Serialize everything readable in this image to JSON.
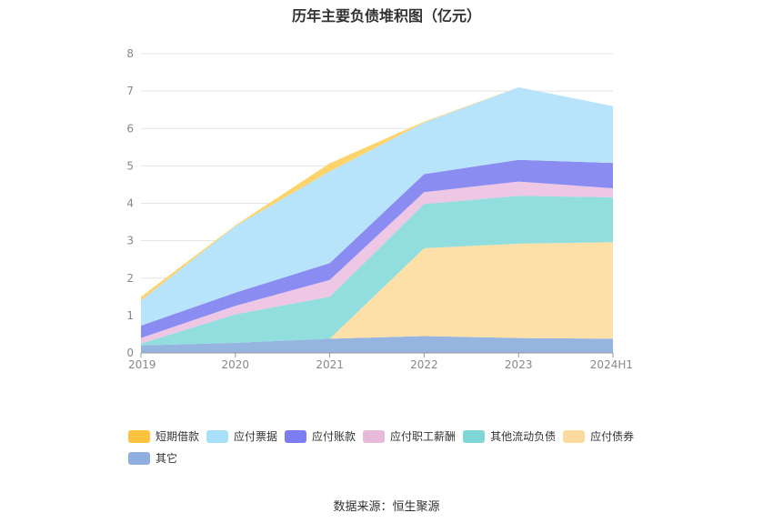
{
  "chart_data": {
    "type": "area",
    "stacked": true,
    "title": "历年主要负债堆积图（亿元）",
    "categories": [
      "2019",
      "2020",
      "2021",
      "2022",
      "2023",
      "2024H1"
    ],
    "ylim": [
      0,
      8
    ],
    "yticks": [
      "0",
      "1",
      "2",
      "3",
      "4",
      "5",
      "6",
      "7",
      "8"
    ],
    "grid": true,
    "legend_position": "bottom-left",
    "series": [
      {
        "name": "其它",
        "color": "#95b4e0",
        "values": [
          0.2,
          0.27,
          0.38,
          0.45,
          0.4,
          0.38
        ]
      },
      {
        "name": "应付债券",
        "color": "#fde0a8",
        "values": [
          0,
          0,
          0,
          2.35,
          2.52,
          2.58
        ]
      },
      {
        "name": "其他流动负债",
        "color": "#92dede",
        "values": [
          0.05,
          0.76,
          1.12,
          1.18,
          1.28,
          1.2
        ]
      },
      {
        "name": "应付职工薪酬",
        "color": "#edc7e3",
        "values": [
          0.15,
          0.23,
          0.45,
          0.32,
          0.38,
          0.24
        ]
      },
      {
        "name": "应付账款",
        "color": "#8a8cf2",
        "values": [
          0.33,
          0.35,
          0.45,
          0.48,
          0.58,
          0.68
        ]
      },
      {
        "name": "应付票据",
        "color": "#b7e4fa",
        "values": [
          0.67,
          1.78,
          2.45,
          1.38,
          1.94,
          1.52
        ]
      },
      {
        "name": "短期借款",
        "color": "#fdd36b",
        "values": [
          0.1,
          0.02,
          0.22,
          0.02,
          0,
          0
        ]
      }
    ],
    "legend_order": [
      "短期借款",
      "应付票据",
      "应付账款",
      "应付职工薪酬",
      "其他流动负债",
      "应付债券",
      "其它"
    ],
    "legend_colors": {
      "短期借款": "#fdc33f",
      "应付票据": "#a8dff9",
      "应付账款": "#7b7ef0",
      "应付职工薪酬": "#e9b9db",
      "其他流动负债": "#80d6d6",
      "应付债券": "#fcdba0",
      "其它": "#8fb0de"
    }
  },
  "footer": {
    "source": "数据来源：恒生聚源"
  }
}
